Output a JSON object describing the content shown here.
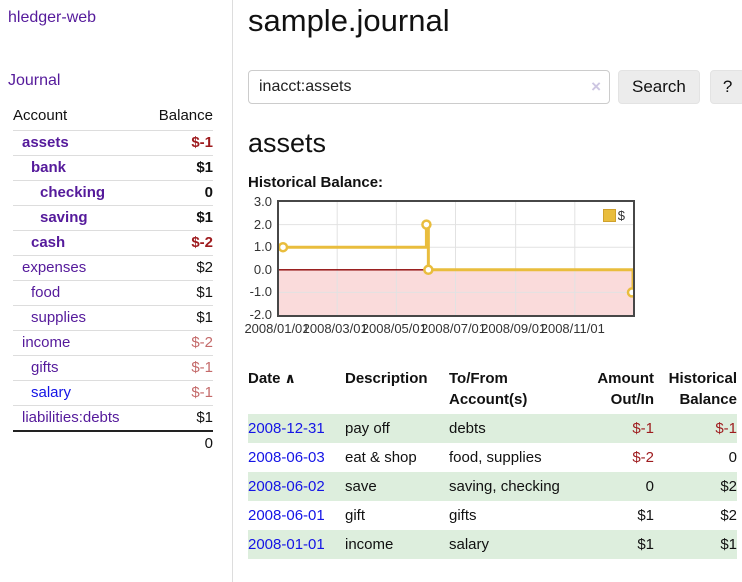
{
  "app_title": "hledger-web",
  "sidebar": {
    "journal_link": "Journal",
    "accounts": {
      "header_account": "Account",
      "header_balance": "Balance",
      "rows": [
        {
          "name": "assets",
          "balance": "$-1"
        },
        {
          "name": "bank",
          "balance": "$1"
        },
        {
          "name": "checking",
          "balance": "0"
        },
        {
          "name": "saving",
          "balance": "$1"
        },
        {
          "name": "cash",
          "balance": "$-2"
        },
        {
          "name": "expenses",
          "balance": "$2"
        },
        {
          "name": "food",
          "balance": "$1"
        },
        {
          "name": "supplies",
          "balance": "$1"
        },
        {
          "name": "income",
          "balance": "$-2"
        },
        {
          "name": "gifts",
          "balance": "$-1"
        },
        {
          "name": "salary",
          "balance": "$-1"
        },
        {
          "name": "liabilities:debts",
          "balance": "$1"
        }
      ],
      "total": "0"
    }
  },
  "main": {
    "title": "sample.journal",
    "search": {
      "value": "inacct:assets",
      "clear_icon": "×",
      "search_button": "Search",
      "help_button": "?"
    },
    "account_heading": "assets",
    "chart_title": "Historical Balance:"
  },
  "chart_data": {
    "type": "line",
    "step": true,
    "title": "Historical Balance",
    "xrange": [
      "2008-01-01",
      "2008-12-31"
    ],
    "ylim": [
      -2,
      3
    ],
    "yticks": [
      3.0,
      2.0,
      1.0,
      0.0,
      -1.0,
      -2.0
    ],
    "xticks": [
      "2008/01/01",
      "2008/03/01",
      "2008/05/01",
      "2008/07/01",
      "2008/09/01",
      "2008/11/01"
    ],
    "series": [
      {
        "name": "$",
        "color": "#e9bd3d",
        "points": [
          {
            "x": "2008-01-01",
            "y": 1
          },
          {
            "x": "2008-06-01",
            "y": 2
          },
          {
            "x": "2008-06-03",
            "y": 0
          },
          {
            "x": "2008-12-31",
            "y": -1
          }
        ]
      }
    ],
    "grid_color": "#e2e2e2",
    "zero_line_color": "#8b0000",
    "negative_region_color": "#fadbdb",
    "legend_position": "top-right"
  },
  "register": {
    "headers": {
      "date": "Date",
      "sort_icon": "∧",
      "description": "Description",
      "accounts": "To/From Account(s)",
      "amount": "Amount Out/In",
      "balance": "Historical Balance"
    },
    "rows": [
      {
        "date": "2008-12-31",
        "description": "pay off",
        "accounts": "debts",
        "amount": "$-1",
        "balance": "$-1"
      },
      {
        "date": "2008-06-03",
        "description": "eat & shop",
        "accounts": "food, supplies",
        "amount": "$-2",
        "balance": "0"
      },
      {
        "date": "2008-06-02",
        "description": "save",
        "accounts": "saving, checking",
        "amount": "0",
        "balance": "$2"
      },
      {
        "date": "2008-06-01",
        "description": "gift",
        "accounts": "gifts",
        "amount": "$1",
        "balance": "$2"
      },
      {
        "date": "2008-01-01",
        "description": "income",
        "accounts": "salary",
        "amount": "$1",
        "balance": "$1"
      }
    ]
  }
}
